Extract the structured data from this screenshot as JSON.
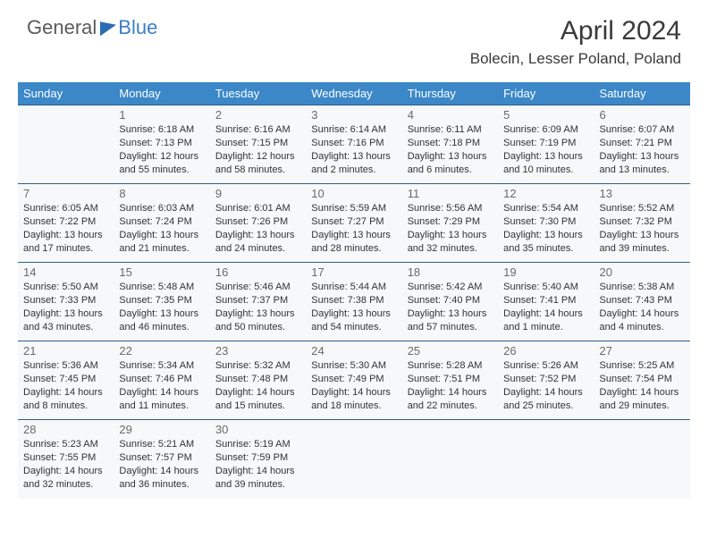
{
  "logo": {
    "general": "General",
    "blue": "Blue"
  },
  "title": "April 2024",
  "location": "Bolecin, Lesser Poland, Poland",
  "colors": {
    "header_bg": "#3b87c8",
    "header_text": "#ffffff",
    "row_divider": "#2f5e8a",
    "cell_bg": "#f7f8f9",
    "daynum": "#6a6a6a",
    "body_text": "#333333",
    "logo_gray": "#5a5a5a",
    "logo_blue": "#3b7fc4"
  },
  "weekdays": [
    "Sunday",
    "Monday",
    "Tuesday",
    "Wednesday",
    "Thursday",
    "Friday",
    "Saturday"
  ],
  "weeks": [
    [
      null,
      {
        "n": "1",
        "sr": "6:18 AM",
        "ss": "7:13 PM",
        "dl": "12 hours and 55 minutes."
      },
      {
        "n": "2",
        "sr": "6:16 AM",
        "ss": "7:15 PM",
        "dl": "12 hours and 58 minutes."
      },
      {
        "n": "3",
        "sr": "6:14 AM",
        "ss": "7:16 PM",
        "dl": "13 hours and 2 minutes."
      },
      {
        "n": "4",
        "sr": "6:11 AM",
        "ss": "7:18 PM",
        "dl": "13 hours and 6 minutes."
      },
      {
        "n": "5",
        "sr": "6:09 AM",
        "ss": "7:19 PM",
        "dl": "13 hours and 10 minutes."
      },
      {
        "n": "6",
        "sr": "6:07 AM",
        "ss": "7:21 PM",
        "dl": "13 hours and 13 minutes."
      }
    ],
    [
      {
        "n": "7",
        "sr": "6:05 AM",
        "ss": "7:22 PM",
        "dl": "13 hours and 17 minutes."
      },
      {
        "n": "8",
        "sr": "6:03 AM",
        "ss": "7:24 PM",
        "dl": "13 hours and 21 minutes."
      },
      {
        "n": "9",
        "sr": "6:01 AM",
        "ss": "7:26 PM",
        "dl": "13 hours and 24 minutes."
      },
      {
        "n": "10",
        "sr": "5:59 AM",
        "ss": "7:27 PM",
        "dl": "13 hours and 28 minutes."
      },
      {
        "n": "11",
        "sr": "5:56 AM",
        "ss": "7:29 PM",
        "dl": "13 hours and 32 minutes."
      },
      {
        "n": "12",
        "sr": "5:54 AM",
        "ss": "7:30 PM",
        "dl": "13 hours and 35 minutes."
      },
      {
        "n": "13",
        "sr": "5:52 AM",
        "ss": "7:32 PM",
        "dl": "13 hours and 39 minutes."
      }
    ],
    [
      {
        "n": "14",
        "sr": "5:50 AM",
        "ss": "7:33 PM",
        "dl": "13 hours and 43 minutes."
      },
      {
        "n": "15",
        "sr": "5:48 AM",
        "ss": "7:35 PM",
        "dl": "13 hours and 46 minutes."
      },
      {
        "n": "16",
        "sr": "5:46 AM",
        "ss": "7:37 PM",
        "dl": "13 hours and 50 minutes."
      },
      {
        "n": "17",
        "sr": "5:44 AM",
        "ss": "7:38 PM",
        "dl": "13 hours and 54 minutes."
      },
      {
        "n": "18",
        "sr": "5:42 AM",
        "ss": "7:40 PM",
        "dl": "13 hours and 57 minutes."
      },
      {
        "n": "19",
        "sr": "5:40 AM",
        "ss": "7:41 PM",
        "dl": "14 hours and 1 minute."
      },
      {
        "n": "20",
        "sr": "5:38 AM",
        "ss": "7:43 PM",
        "dl": "14 hours and 4 minutes."
      }
    ],
    [
      {
        "n": "21",
        "sr": "5:36 AM",
        "ss": "7:45 PM",
        "dl": "14 hours and 8 minutes."
      },
      {
        "n": "22",
        "sr": "5:34 AM",
        "ss": "7:46 PM",
        "dl": "14 hours and 11 minutes."
      },
      {
        "n": "23",
        "sr": "5:32 AM",
        "ss": "7:48 PM",
        "dl": "14 hours and 15 minutes."
      },
      {
        "n": "24",
        "sr": "5:30 AM",
        "ss": "7:49 PM",
        "dl": "14 hours and 18 minutes."
      },
      {
        "n": "25",
        "sr": "5:28 AM",
        "ss": "7:51 PM",
        "dl": "14 hours and 22 minutes."
      },
      {
        "n": "26",
        "sr": "5:26 AM",
        "ss": "7:52 PM",
        "dl": "14 hours and 25 minutes."
      },
      {
        "n": "27",
        "sr": "5:25 AM",
        "ss": "7:54 PM",
        "dl": "14 hours and 29 minutes."
      }
    ],
    [
      {
        "n": "28",
        "sr": "5:23 AM",
        "ss": "7:55 PM",
        "dl": "14 hours and 32 minutes."
      },
      {
        "n": "29",
        "sr": "5:21 AM",
        "ss": "7:57 PM",
        "dl": "14 hours and 36 minutes."
      },
      {
        "n": "30",
        "sr": "5:19 AM",
        "ss": "7:59 PM",
        "dl": "14 hours and 39 minutes."
      },
      null,
      null,
      null,
      null
    ]
  ],
  "labels": {
    "sunrise": "Sunrise:",
    "sunset": "Sunset:",
    "daylight": "Daylight:"
  }
}
